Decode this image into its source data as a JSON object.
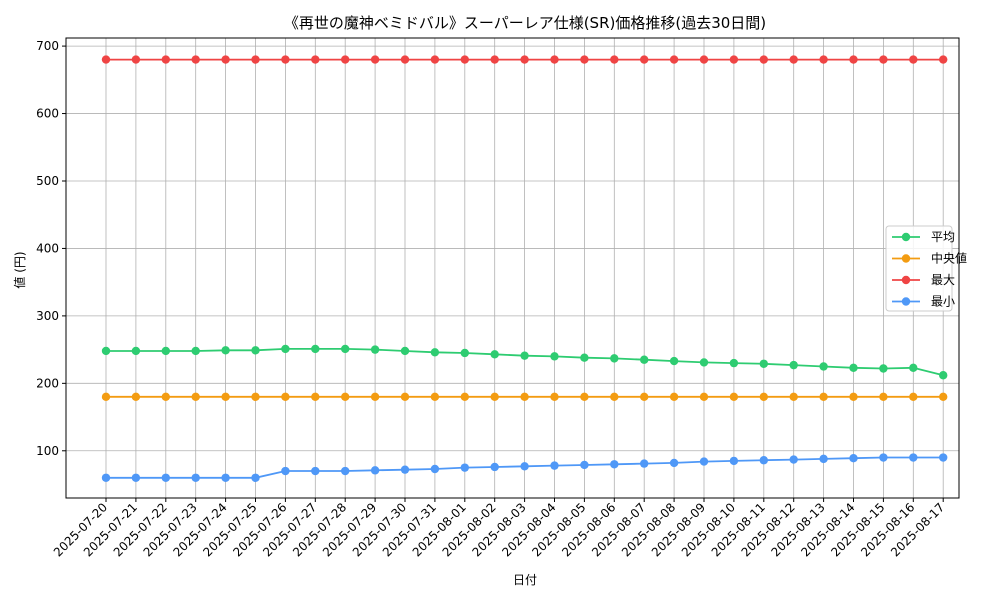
{
  "chart_data": {
    "type": "line",
    "title": "《再世の魔神ベミドバル》スーパーレア仕様(SR)価格推移(過去30日間)",
    "xlabel": "日付",
    "ylabel": "値 (円)",
    "ylim": [
      30,
      712
    ],
    "yticks": [
      100,
      200,
      300,
      400,
      500,
      600,
      700
    ],
    "grid": true,
    "legend_position": "right",
    "categories": [
      "2025-07-20",
      "2025-07-21",
      "2025-07-22",
      "2025-07-23",
      "2025-07-24",
      "2025-07-25",
      "2025-07-26",
      "2025-07-27",
      "2025-07-28",
      "2025-07-29",
      "2025-07-30",
      "2025-07-31",
      "2025-08-01",
      "2025-08-02",
      "2025-08-03",
      "2025-08-04",
      "2025-08-05",
      "2025-08-06",
      "2025-08-07",
      "2025-08-08",
      "2025-08-09",
      "2025-08-10",
      "2025-08-11",
      "2025-08-12",
      "2025-08-13",
      "2025-08-14",
      "2025-08-15",
      "2025-08-16",
      "2025-08-17"
    ],
    "series": [
      {
        "name": "平均",
        "color": "#2ecc71",
        "values": [
          248,
          248,
          248,
          248,
          249,
          249,
          251,
          251,
          251,
          250,
          248,
          246,
          245,
          243,
          241,
          240,
          238,
          237,
          235,
          233,
          231,
          230,
          229,
          227,
          225,
          223,
          222,
          223,
          212
        ]
      },
      {
        "name": "中央値",
        "color": "#f39c12",
        "values": [
          180,
          180,
          180,
          180,
          180,
          180,
          180,
          180,
          180,
          180,
          180,
          180,
          180,
          180,
          180,
          180,
          180,
          180,
          180,
          180,
          180,
          180,
          180,
          180,
          180,
          180,
          180,
          180,
          180
        ]
      },
      {
        "name": "最大",
        "color": "#ef4444",
        "values": [
          680,
          680,
          680,
          680,
          680,
          680,
          680,
          680,
          680,
          680,
          680,
          680,
          680,
          680,
          680,
          680,
          680,
          680,
          680,
          680,
          680,
          680,
          680,
          680,
          680,
          680,
          680,
          680,
          680
        ]
      },
      {
        "name": "最小",
        "color": "#4f98f7",
        "values": [
          60,
          60,
          60,
          60,
          60,
          60,
          70,
          70,
          70,
          71,
          72,
          73,
          75,
          76,
          77,
          78,
          79,
          80,
          81,
          82,
          84,
          85,
          86,
          87,
          88,
          89,
          90,
          90,
          90
        ]
      }
    ]
  }
}
